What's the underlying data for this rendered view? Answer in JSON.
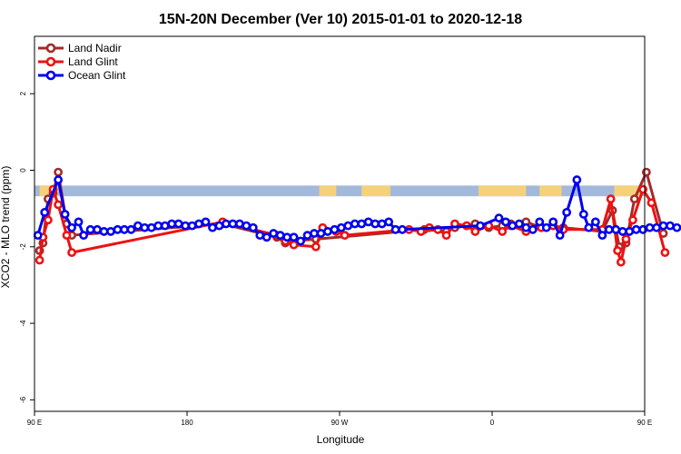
{
  "chart_data": {
    "type": "line",
    "title": "15N-20N December (Ver 10)   2015-01-01 to 2020-12-18",
    "xlabel": "Longitude",
    "ylabel": "XCO2 - MLO trend (ppm)",
    "xlim": [
      90,
      450
    ],
    "ylim": [
      -6.3,
      3.5
    ],
    "x_ticks": [
      {
        "value": 90,
        "label": "90 E"
      },
      {
        "value": 180,
        "label": "180"
      },
      {
        "value": 270,
        "label": "90 W"
      },
      {
        "value": 360,
        "label": "0"
      },
      {
        "value": 450,
        "label": "90 E"
      },
      {
        "value": 540,
        "label": "180"
      }
    ],
    "y_ticks": [
      {
        "value": 2,
        "label": "2"
      },
      {
        "value": 0,
        "label": "0"
      },
      {
        "value": -2,
        "label": "-2"
      },
      {
        "value": -4,
        "label": "-4"
      },
      {
        "value": -6,
        "label": "-6"
      }
    ],
    "legend_position": "top-left",
    "grid": false,
    "land_band": {
      "y_top": -0.4,
      "y_bottom": -0.68,
      "ocean_color": "#a3b9dc",
      "land_color": "#f5d27a"
    },
    "series": [
      {
        "name": "Land Nadir",
        "color": "#a52a2a",
        "points": [
          [
            93,
            -2.1
          ],
          [
            95,
            -1.9
          ],
          [
            98,
            -0.75
          ],
          [
            101,
            -0.6
          ],
          [
            104,
            -0.05
          ],
          [
            109,
            -1.4
          ],
          [
            112,
            -1.7
          ],
          [
            201,
            -1.4
          ],
          [
            233,
            -1.75
          ],
          [
            238,
            -1.9
          ],
          [
            243,
            -1.85
          ],
          [
            256,
            -1.8
          ],
          [
            320,
            -1.55
          ],
          [
            333,
            -1.6
          ],
          [
            338,
            -1.5
          ],
          [
            345,
            -1.45
          ],
          [
            350,
            -1.4
          ],
          [
            358,
            -1.5
          ],
          [
            366,
            -1.45
          ],
          [
            371,
            -1.4
          ],
          [
            380,
            -1.35
          ],
          [
            389,
            -1.5
          ],
          [
            396,
            -1.45
          ],
          [
            402,
            -1.5
          ],
          [
            425,
            -1.6
          ],
          [
            431,
            -1.05
          ],
          [
            435,
            -2.0
          ],
          [
            439,
            -1.9
          ],
          [
            444,
            -0.75
          ],
          [
            451,
            -0.05
          ],
          [
            461,
            -1.65
          ]
        ]
      },
      {
        "name": "Land Glint",
        "color": "#ee1111",
        "points": [
          [
            93,
            -2.35
          ],
          [
            95,
            -1.75
          ],
          [
            98,
            -1.3
          ],
          [
            101,
            -0.5
          ],
          [
            104,
            -0.9
          ],
          [
            109,
            -1.7
          ],
          [
            112,
            -2.15
          ],
          [
            201,
            -1.35
          ],
          [
            233,
            -1.7
          ],
          [
            238,
            -1.85
          ],
          [
            243,
            -1.95
          ],
          [
            256,
            -2.0
          ],
          [
            260,
            -1.5
          ],
          [
            268,
            -1.6
          ],
          [
            273,
            -1.7
          ],
          [
            311,
            -1.55
          ],
          [
            318,
            -1.6
          ],
          [
            323,
            -1.5
          ],
          [
            328,
            -1.55
          ],
          [
            333,
            -1.7
          ],
          [
            338,
            -1.4
          ],
          [
            345,
            -1.45
          ],
          [
            350,
            -1.6
          ],
          [
            358,
            -1.45
          ],
          [
            366,
            -1.6
          ],
          [
            371,
            -1.45
          ],
          [
            380,
            -1.6
          ],
          [
            389,
            -1.5
          ],
          [
            396,
            -1.45
          ],
          [
            402,
            -1.55
          ],
          [
            425,
            -1.55
          ],
          [
            430,
            -0.75
          ],
          [
            434,
            -2.1
          ],
          [
            436,
            -2.4
          ],
          [
            439,
            -1.8
          ],
          [
            443,
            -1.3
          ],
          [
            449,
            -0.5
          ],
          [
            454,
            -0.85
          ],
          [
            462,
            -2.15
          ]
        ]
      },
      {
        "name": "Ocean Glint",
        "color": "#0000ee",
        "points": [
          [
            92,
            -1.7
          ],
          [
            96,
            -1.1
          ],
          [
            104,
            -0.25
          ],
          [
            108,
            -1.15
          ],
          [
            112,
            -1.5
          ],
          [
            116,
            -1.35
          ],
          [
            119,
            -1.7
          ],
          [
            123,
            -1.55
          ],
          [
            127,
            -1.55
          ],
          [
            131,
            -1.6
          ],
          [
            135,
            -1.6
          ],
          [
            139,
            -1.55
          ],
          [
            143,
            -1.55
          ],
          [
            147,
            -1.55
          ],
          [
            151,
            -1.45
          ],
          [
            155,
            -1.5
          ],
          [
            159,
            -1.5
          ],
          [
            163,
            -1.45
          ],
          [
            167,
            -1.45
          ],
          [
            171,
            -1.4
          ],
          [
            175,
            -1.4
          ],
          [
            179,
            -1.45
          ],
          [
            183,
            -1.45
          ],
          [
            187,
            -1.4
          ],
          [
            191,
            -1.35
          ],
          [
            195,
            -1.5
          ],
          [
            199,
            -1.45
          ],
          [
            203,
            -1.4
          ],
          [
            207,
            -1.4
          ],
          [
            211,
            -1.4
          ],
          [
            215,
            -1.45
          ],
          [
            219,
            -1.5
          ],
          [
            223,
            -1.7
          ],
          [
            227,
            -1.75
          ],
          [
            231,
            -1.65
          ],
          [
            235,
            -1.7
          ],
          [
            239,
            -1.75
          ],
          [
            243,
            -1.75
          ],
          [
            247,
            -1.85
          ],
          [
            251,
            -1.7
          ],
          [
            255,
            -1.65
          ],
          [
            259,
            -1.65
          ],
          [
            263,
            -1.6
          ],
          [
            267,
            -1.55
          ],
          [
            271,
            -1.5
          ],
          [
            275,
            -1.45
          ],
          [
            279,
            -1.4
          ],
          [
            283,
            -1.4
          ],
          [
            287,
            -1.35
          ],
          [
            291,
            -1.4
          ],
          [
            295,
            -1.4
          ],
          [
            299,
            -1.35
          ],
          [
            303,
            -1.55
          ],
          [
            307,
            -1.55
          ],
          [
            353,
            -1.45
          ],
          [
            364,
            -1.25
          ],
          [
            368,
            -1.35
          ],
          [
            372,
            -1.45
          ],
          [
            376,
            -1.4
          ],
          [
            380,
            -1.5
          ],
          [
            384,
            -1.55
          ],
          [
            388,
            -1.35
          ],
          [
            392,
            -1.5
          ],
          [
            396,
            -1.35
          ],
          [
            400,
            -1.7
          ],
          [
            404,
            -1.1
          ],
          [
            410,
            -0.25
          ],
          [
            414,
            -1.15
          ],
          [
            417,
            -1.5
          ],
          [
            421,
            -1.35
          ],
          [
            425,
            -1.7
          ],
          [
            429,
            -1.55
          ],
          [
            433,
            -1.55
          ],
          [
            437,
            -1.6
          ],
          [
            441,
            -1.6
          ],
          [
            445,
            -1.55
          ],
          [
            449,
            -1.55
          ],
          [
            453,
            -1.5
          ],
          [
            457,
            -1.5
          ],
          [
            461,
            -1.45
          ],
          [
            465,
            -1.45
          ],
          [
            469,
            -1.5
          ]
        ]
      }
    ]
  }
}
